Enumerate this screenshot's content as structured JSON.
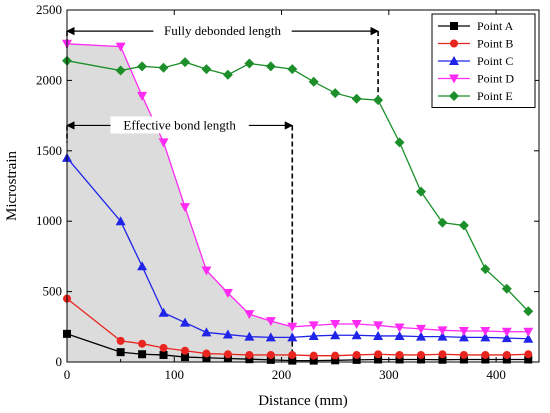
{
  "chart_data": {
    "type": "line",
    "xlabel": "Distance (mm)",
    "ylabel": "Microstrain",
    "xlim": [
      0,
      440
    ],
    "ylim": [
      0,
      2500
    ],
    "xticks": [
      0,
      100,
      200,
      300,
      400
    ],
    "yticks": [
      0,
      500,
      1000,
      1500,
      2000,
      2500
    ],
    "grid": false,
    "legend_position": "top-right",
    "shaded_region": {
      "x": [
        0,
        50,
        70,
        90,
        110,
        130,
        150,
        170,
        190,
        210
      ],
      "y": [
        2260,
        2240,
        1890,
        1560,
        1100,
        650,
        490,
        340,
        290,
        250
      ],
      "color": "#dcdcdc"
    },
    "series": [
      {
        "name": "Point A",
        "color": "#000000",
        "marker": "square",
        "x": [
          0,
          50,
          70,
          90,
          110,
          130,
          150,
          170,
          190,
          210,
          230,
          250,
          270,
          290,
          310,
          330,
          350,
          370,
          390,
          410,
          430
        ],
        "y": [
          200,
          70,
          55,
          50,
          35,
          30,
          25,
          20,
          15,
          10,
          10,
          12,
          15,
          18,
          18,
          18,
          16,
          18,
          18,
          18,
          18
        ]
      },
      {
        "name": "Point B",
        "color": "#e8261f",
        "marker": "circle",
        "x": [
          0,
          50,
          70,
          90,
          110,
          130,
          150,
          170,
          190,
          210,
          230,
          250,
          270,
          290,
          310,
          330,
          350,
          370,
          390,
          410,
          430
        ],
        "y": [
          450,
          150,
          130,
          100,
          80,
          60,
          55,
          50,
          50,
          50,
          45,
          45,
          50,
          55,
          50,
          50,
          55,
          50,
          50,
          50,
          55
        ]
      },
      {
        "name": "Point C",
        "color": "#1f24e8",
        "marker": "triangle-up",
        "x": [
          0,
          50,
          70,
          90,
          110,
          130,
          150,
          170,
          190,
          210,
          230,
          250,
          270,
          290,
          310,
          330,
          350,
          370,
          390,
          410,
          430
        ],
        "y": [
          1450,
          1000,
          680,
          350,
          280,
          210,
          195,
          180,
          175,
          175,
          185,
          190,
          190,
          185,
          185,
          180,
          180,
          175,
          175,
          170,
          165
        ]
      },
      {
        "name": "Point D",
        "color": "#ff2bf2",
        "marker": "triangle-down",
        "x": [
          0,
          50,
          70,
          90,
          110,
          130,
          150,
          170,
          190,
          210,
          230,
          250,
          270,
          290,
          310,
          330,
          350,
          370,
          390,
          410,
          430
        ],
        "y": [
          2260,
          2240,
          1890,
          1560,
          1100,
          650,
          490,
          340,
          290,
          250,
          260,
          270,
          270,
          260,
          245,
          235,
          225,
          220,
          220,
          215,
          215
        ]
      },
      {
        "name": "Point E",
        "color": "#1c8f2a",
        "marker": "diamond",
        "x": [
          0,
          50,
          70,
          90,
          110,
          130,
          150,
          170,
          190,
          210,
          230,
          250,
          270,
          290,
          310,
          330,
          350,
          370,
          390,
          410,
          430
        ],
        "y": [
          2140,
          2070,
          2100,
          2090,
          2130,
          2080,
          2040,
          2120,
          2100,
          2080,
          1990,
          1910,
          1870,
          1860,
          1560,
          1210,
          990,
          970,
          660,
          520,
          360
        ]
      }
    ],
    "annotations": [
      {
        "text": "Fully debonded length",
        "x_from": 0,
        "x_to": 290,
        "y_arrow": 2350,
        "vline_x": 290,
        "vline_y_bottom": 1870
      },
      {
        "text": "Effective bond length",
        "x_from": 0,
        "x_to": 210,
        "y_arrow": 1680,
        "vline_x": 210,
        "vline_y_bottom": 0
      }
    ]
  }
}
